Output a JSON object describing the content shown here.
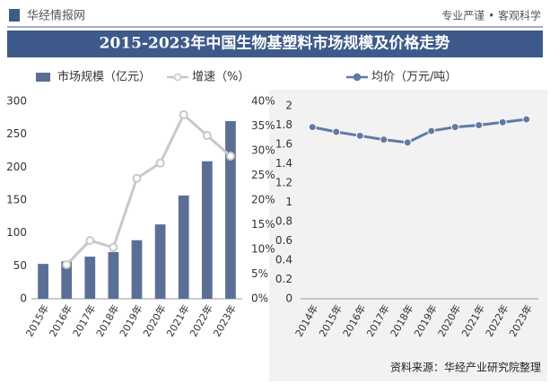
{
  "header": {
    "brand": "华经情报网",
    "slogan": "专业严谨 • 客观科学"
  },
  "title": "2015-2023年中国生物基塑料市场规模及价格走势",
  "chart_data": [
    {
      "type": "bar",
      "categories": [
        "2015年",
        "2016年",
        "2017年",
        "2018年",
        "2019年",
        "2020年",
        "2021年",
        "2022年",
        "2023年"
      ],
      "series": [
        {
          "name": "市场规模（亿元）",
          "type": "bar",
          "color": "#5b6f96",
          "values": [
            53,
            57,
            64,
            71,
            89,
            113,
            157,
            209,
            270
          ]
        },
        {
          "name": "增速（%）",
          "type": "line",
          "axis": "y2",
          "color": "#c8c8c8",
          "values": [
            null,
            6.9,
            11.8,
            10.4,
            24.4,
            27.5,
            37.3,
            33.1,
            28.9
          ]
        }
      ],
      "ylim": [
        0,
        300
      ],
      "yticks": [
        0,
        50,
        100,
        150,
        200,
        250,
        300
      ],
      "y2lim": [
        0,
        40
      ],
      "y2ticks": [
        {
          "value": 0,
          "label": "0%"
        },
        {
          "value": 5,
          "label": "5%"
        },
        {
          "value": 10,
          "label": "10%"
        },
        {
          "value": 15,
          "label": "15%"
        },
        {
          "value": 20,
          "label": "20%"
        },
        {
          "value": 25,
          "label": "25%"
        },
        {
          "value": 30,
          "label": "30%"
        },
        {
          "value": 35,
          "label": "35%"
        },
        {
          "value": 40,
          "label": "40%"
        }
      ],
      "legend": "top"
    },
    {
      "type": "line",
      "categories": [
        "2014年",
        "2015年",
        "2016年",
        "2017年",
        "2018年",
        "2019年",
        "2020年",
        "2021年",
        "2022年",
        "2023年"
      ],
      "series": [
        {
          "name": "均价（万元/吨）",
          "type": "line",
          "color": "#6079a6",
          "values": [
            1.78,
            1.73,
            1.69,
            1.65,
            1.62,
            1.74,
            1.78,
            1.8,
            1.83,
            1.86
          ]
        }
      ],
      "ylim": [
        0,
        2
      ],
      "yticks": [
        0,
        0.2,
        0.4,
        0.6,
        0.8,
        1,
        1.2,
        1.4,
        1.6,
        1.8,
        2
      ],
      "legend": "top"
    }
  ],
  "footer": "资料来源：华经产业研究院整理"
}
